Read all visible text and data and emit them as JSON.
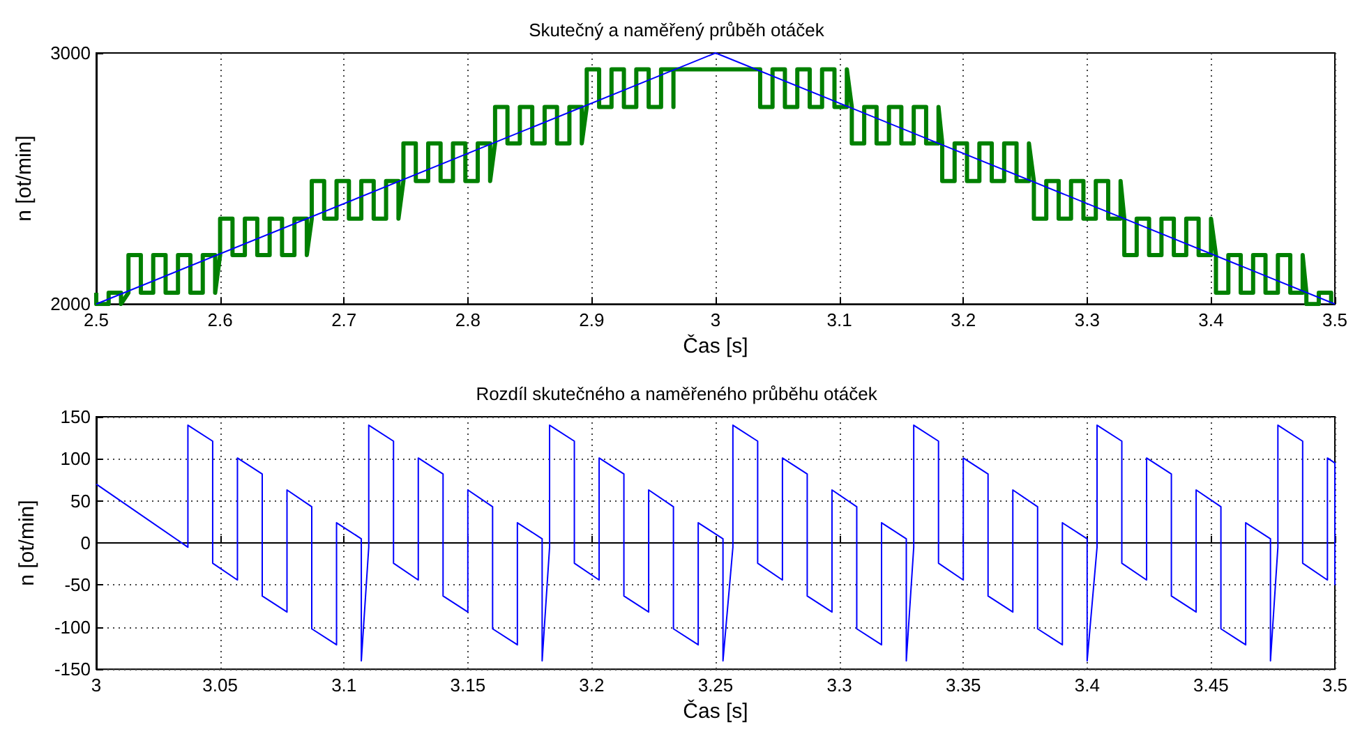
{
  "chart_data": [
    {
      "type": "line",
      "title": "Skutečný a naměřený průběh otáček",
      "xlabel": "Čas [s]",
      "ylabel": "n [ot/min]",
      "xlim": [
        2.5,
        3.5
      ],
      "ylim": [
        2000,
        3000
      ],
      "xticks": [
        2.5,
        2.6,
        2.7,
        2.8,
        2.9,
        3,
        3.1,
        3.2,
        3.3,
        3.4,
        3.5
      ],
      "yticks": [
        2000,
        3000
      ],
      "grid": "x",
      "series": [
        {
          "color": "#008000",
          "x": [
            2.5,
            2.5,
            2.51,
            2.51,
            2.52,
            2.52,
            2.526,
            2.526,
            2.536,
            2.536,
            2.546,
            2.546,
            2.556,
            2.556,
            2.566,
            2.566,
            2.576,
            2.576,
            2.586,
            2.586,
            2.596,
            2.596,
            2.6,
            2.6,
            2.61,
            2.61,
            2.62,
            2.62,
            2.63,
            2.63,
            2.64,
            2.64,
            2.65,
            2.65,
            2.66,
            2.66,
            2.67,
            2.67,
            2.674,
            2.674,
            2.684,
            2.684,
            2.694,
            2.694,
            2.704,
            2.704,
            2.714,
            2.714,
            2.724,
            2.724,
            2.734,
            2.734,
            2.744,
            2.744,
            2.748,
            2.748,
            2.758,
            2.758,
            2.768,
            2.768,
            2.778,
            2.778,
            2.788,
            2.788,
            2.798,
            2.798,
            2.808,
            2.808,
            2.818,
            2.818,
            2.822,
            2.822,
            2.832,
            2.832,
            2.842,
            2.842,
            2.852,
            2.852,
            2.862,
            2.862,
            2.872,
            2.872,
            2.882,
            2.882,
            2.892,
            2.892,
            2.896,
            2.896,
            2.906,
            2.906,
            2.916,
            2.916,
            2.926,
            2.926,
            2.936,
            2.936,
            2.946,
            2.946,
            2.956,
            2.956,
            2.966,
            2.966,
            2.966,
            3.036,
            3.036,
            3.036,
            3.046,
            3.046,
            3.056,
            3.056,
            3.066,
            3.066,
            3.076,
            3.076,
            3.086,
            3.086,
            3.096,
            3.096,
            3.106,
            3.106,
            3.11,
            3.11,
            3.12,
            3.12,
            3.13,
            3.13,
            3.14,
            3.14,
            3.15,
            3.15,
            3.16,
            3.16,
            3.17,
            3.17,
            3.18,
            3.18,
            3.183,
            3.183,
            3.193,
            3.193,
            3.203,
            3.203,
            3.213,
            3.213,
            3.223,
            3.223,
            3.233,
            3.233,
            3.243,
            3.243,
            3.253,
            3.253,
            3.257,
            3.257,
            3.267,
            3.267,
            3.277,
            3.277,
            3.287,
            3.287,
            3.297,
            3.297,
            3.307,
            3.307,
            3.317,
            3.317,
            3.327,
            3.327,
            3.33,
            3.33,
            3.34,
            3.34,
            3.35,
            3.35,
            3.36,
            3.36,
            3.37,
            3.37,
            3.38,
            3.38,
            3.39,
            3.39,
            3.4,
            3.4,
            3.404,
            3.404,
            3.414,
            3.414,
            3.424,
            3.424,
            3.434,
            3.434,
            3.444,
            3.444,
            3.454,
            3.454,
            3.464,
            3.464,
            3.474,
            3.474,
            3.477,
            3.477,
            3.487,
            3.487,
            3.497,
            3.497
          ],
          "values": [
            2045,
            2000,
            2000,
            2045,
            2045,
            2000,
            2045,
            2195,
            2195,
            2045,
            2045,
            2195,
            2195,
            2045,
            2045,
            2195,
            2195,
            2045,
            2045,
            2195,
            2195,
            2045,
            2195,
            2340,
            2340,
            2195,
            2195,
            2340,
            2340,
            2195,
            2195,
            2340,
            2340,
            2195,
            2195,
            2340,
            2340,
            2195,
            2340,
            2490,
            2490,
            2340,
            2340,
            2490,
            2490,
            2340,
            2340,
            2490,
            2490,
            2340,
            2340,
            2490,
            2490,
            2340,
            2490,
            2640,
            2640,
            2490,
            2490,
            2640,
            2640,
            2490,
            2490,
            2640,
            2640,
            2490,
            2490,
            2640,
            2640,
            2490,
            2640,
            2785,
            2785,
            2640,
            2640,
            2785,
            2785,
            2640,
            2640,
            2785,
            2785,
            2640,
            2640,
            2785,
            2785,
            2640,
            2785,
            2935,
            2935,
            2785,
            2785,
            2935,
            2935,
            2785,
            2785,
            2935,
            2935,
            2785,
            2785,
            2935,
            2935,
            2785,
            2935,
            2935,
            2935,
            2785,
            2785,
            2935,
            2935,
            2785,
            2785,
            2935,
            2935,
            2785,
            2785,
            2935,
            2935,
            2785,
            2785,
            2935,
            2785,
            2640,
            2640,
            2785,
            2785,
            2640,
            2640,
            2785,
            2785,
            2640,
            2640,
            2785,
            2785,
            2640,
            2640,
            2785,
            2640,
            2490,
            2490,
            2640,
            2640,
            2490,
            2490,
            2640,
            2640,
            2490,
            2490,
            2640,
            2640,
            2490,
            2490,
            2640,
            2490,
            2340,
            2340,
            2490,
            2490,
            2340,
            2340,
            2490,
            2490,
            2340,
            2340,
            2490,
            2490,
            2340,
            2340,
            2490,
            2340,
            2195,
            2195,
            2340,
            2340,
            2195,
            2195,
            2340,
            2340,
            2195,
            2195,
            2340,
            2340,
            2195,
            2195,
            2340,
            2195,
            2045,
            2045,
            2195,
            2195,
            2045,
            2045,
            2195,
            2195,
            2045,
            2045,
            2195,
            2195,
            2045,
            2045,
            2195,
            2045,
            2000,
            2000,
            2045,
            2045,
            2000
          ]
        },
        {
          "color": "#0000ff",
          "x": [
            2.5,
            3,
            3.5
          ],
          "values": [
            2000,
            3000,
            2000
          ]
        }
      ]
    },
    {
      "type": "line",
      "title": "Rozdíl skutečného a naměřeného průběhu otáček",
      "xlabel": "Čas [s]",
      "ylabel": "n [ot/min]",
      "xlim": [
        3,
        3.5
      ],
      "ylim": [
        -150,
        150
      ],
      "xticks": [
        3,
        3.05,
        3.1,
        3.15,
        3.2,
        3.25,
        3.3,
        3.35,
        3.4,
        3.45,
        3.5
      ],
      "yticks": [
        -150,
        -100,
        -50,
        0,
        50,
        100,
        150
      ],
      "grid": true,
      "series": [
        {
          "color": "#0000ff",
          "x": [
            3,
            3.037,
            3.037,
            3.047,
            3.047,
            3.057,
            3.057,
            3.067,
            3.067,
            3.077,
            3.077,
            3.087,
            3.087,
            3.097,
            3.097,
            3.107,
            3.107,
            3.11,
            3.11,
            3.12,
            3.12,
            3.13,
            3.13,
            3.14,
            3.14,
            3.15,
            3.15,
            3.16,
            3.16,
            3.17,
            3.17,
            3.18,
            3.18,
            3.183,
            3.183,
            3.193,
            3.193,
            3.203,
            3.203,
            3.213,
            3.213,
            3.223,
            3.223,
            3.233,
            3.233,
            3.243,
            3.243,
            3.253,
            3.253,
            3.257,
            3.257,
            3.267,
            3.267,
            3.277,
            3.277,
            3.287,
            3.287,
            3.297,
            3.297,
            3.307,
            3.307,
            3.317,
            3.317,
            3.327,
            3.327,
            3.33,
            3.33,
            3.34,
            3.34,
            3.35,
            3.35,
            3.36,
            3.36,
            3.37,
            3.37,
            3.38,
            3.38,
            3.39,
            3.39,
            3.4,
            3.4,
            3.404,
            3.404,
            3.414,
            3.414,
            3.424,
            3.424,
            3.434,
            3.434,
            3.444,
            3.444,
            3.454,
            3.454,
            3.464,
            3.464,
            3.474,
            3.474,
            3.477,
            3.477,
            3.487,
            3.487,
            3.497,
            3.497,
            3.5,
            3.5
          ],
          "values": [
            70,
            -5,
            140,
            121,
            -24,
            -44,
            101,
            82,
            -63,
            -82,
            63,
            43,
            -102,
            -121,
            24,
            5,
            -140,
            -5,
            140,
            121,
            -24,
            -44,
            101,
            82,
            -63,
            -82,
            63,
            43,
            -102,
            -121,
            24,
            5,
            -140,
            -5,
            140,
            121,
            -24,
            -44,
            101,
            82,
            -63,
            -82,
            63,
            43,
            -102,
            -121,
            24,
            5,
            -140,
            -5,
            140,
            121,
            -24,
            -44,
            101,
            82,
            -63,
            -82,
            63,
            43,
            -102,
            -121,
            24,
            5,
            -140,
            -5,
            140,
            121,
            -24,
            -44,
            101,
            82,
            -63,
            -82,
            63,
            43,
            -102,
            -121,
            24,
            5,
            -140,
            -5,
            140,
            121,
            -24,
            -44,
            101,
            82,
            -63,
            -82,
            63,
            43,
            -102,
            -121,
            24,
            5,
            -140,
            -5,
            140,
            121,
            -24,
            -44,
            101,
            95,
            -50
          ]
        }
      ]
    }
  ]
}
